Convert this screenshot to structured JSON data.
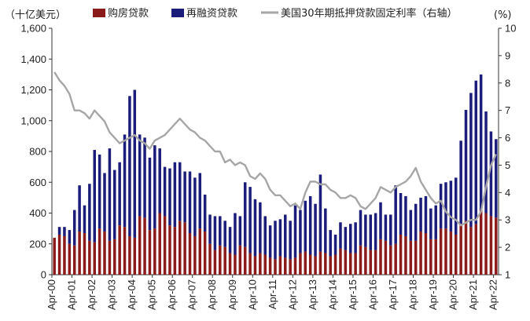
{
  "chart_data": {
    "type": "bar",
    "bar_mode": "stacked",
    "y_left": {
      "unit_label": "（十亿美元）",
      "ylim": [
        0,
        1600
      ],
      "ticks": [
        0,
        200,
        400,
        600,
        800,
        1000,
        1200,
        1400,
        1600
      ],
      "tick_labels": [
        "0",
        "200",
        "400",
        "600",
        "800",
        "1,000",
        "1,200",
        "1,400",
        "1,600"
      ]
    },
    "y_right": {
      "unit_label": "(%)",
      "ylim": [
        1,
        10
      ],
      "ticks": [
        1,
        2,
        3,
        4,
        5,
        6,
        7,
        8,
        9,
        10
      ],
      "tick_labels": [
        "1",
        "2",
        "3",
        "4",
        "5",
        "6",
        "7",
        "8",
        "9",
        "10"
      ]
    },
    "x_tick_labels": [
      "Apr-00",
      "Apr-01",
      "Apr-02",
      "Apr-03",
      "Apr-04",
      "Apr-05",
      "Apr-06",
      "Apr-07",
      "Apr-08",
      "Apr-09",
      "Apr-10",
      "Apr-11",
      "Apr-12",
      "Apr-13",
      "Apr-14",
      "Apr-15",
      "Apr-16",
      "Apr-17",
      "Apr-18",
      "Apr-19",
      "Apr-20",
      "Apr-21",
      "Apr-22"
    ],
    "x_tick_quarter_index": [
      0,
      4,
      8,
      12,
      16,
      20,
      24,
      28,
      32,
      36,
      40,
      44,
      48,
      52,
      56,
      60,
      64,
      68,
      72,
      76,
      80,
      84,
      88
    ],
    "grid": false,
    "legend_position": "top",
    "legend": [
      {
        "name": "购房贷款",
        "kind": "bar",
        "color": "#8b1a1a"
      },
      {
        "name": "再融资贷款",
        "kind": "bar",
        "color": "#1c1c7a"
      },
      {
        "name": "美国30年期抵押贷款固定利率（右轴）",
        "kind": "line",
        "color": "#a6a6a6"
      }
    ],
    "series": [
      {
        "name": "购房贷款",
        "color": "#8b1a1a",
        "axis": "left",
        "values": [
          240,
          260,
          250,
          200,
          190,
          280,
          270,
          220,
          210,
          300,
          280,
          220,
          230,
          320,
          310,
          250,
          240,
          380,
          370,
          290,
          300,
          400,
          380,
          320,
          310,
          350,
          340,
          270,
          250,
          300,
          280,
          200,
          160,
          190,
          180,
          140,
          130,
          190,
          180,
          140,
          120,
          140,
          130,
          110,
          100,
          120,
          110,
          100,
          110,
          140,
          150,
          130,
          120,
          150,
          140,
          120,
          130,
          170,
          160,
          140,
          140,
          190,
          180,
          160,
          160,
          230,
          220,
          190,
          200,
          260,
          250,
          220,
          220,
          280,
          270,
          230,
          230,
          300,
          300,
          280,
          260,
          330,
          350,
          310,
          330,
          420,
          400,
          380,
          370
        ]
      },
      {
        "name": "再融资贷款",
        "color": "#1c1c7a",
        "axis": "left",
        "values": [
          0,
          50,
          60,
          90,
          230,
          300,
          180,
          370,
          600,
          480,
          380,
          600,
          450,
          410,
          600,
          910,
          960,
          530,
          520,
          470,
          540,
          420,
          320,
          370,
          420,
          380,
          330,
          400,
          380,
          360,
          240,
          190,
          220,
          190,
          170,
          170,
          270,
          190,
          420,
          430,
          370,
          330,
          250,
          210,
          250,
          240,
          280,
          250,
          340,
          280,
          330,
          380,
          340,
          500,
          290,
          170,
          130,
          170,
          150,
          190,
          200,
          230,
          210,
          230,
          240,
          240,
          170,
          200,
          380,
          270,
          260,
          200,
          240,
          220,
          240,
          200,
          220,
          290,
          300,
          330,
          370,
          540,
          720,
          870,
          930,
          880,
          660,
          550,
          510
        ]
      },
      {
        "name": "美国30年期抵押贷款固定利率（右轴）",
        "color": "#a6a6a6",
        "axis": "right",
        "type": "line",
        "values": [
          8.4,
          8.1,
          7.9,
          7.6,
          7.0,
          7.0,
          6.9,
          6.7,
          7.0,
          6.8,
          6.6,
          6.2,
          6.0,
          5.8,
          5.9,
          6.0,
          6.1,
          5.9,
          5.8,
          5.6,
          5.9,
          6.0,
          6.1,
          6.3,
          6.5,
          6.7,
          6.5,
          6.3,
          6.2,
          6.0,
          5.9,
          5.7,
          5.5,
          5.5,
          5.1,
          5.2,
          5.0,
          5.1,
          5.0,
          4.6,
          4.5,
          4.7,
          4.5,
          4.1,
          3.9,
          3.9,
          3.7,
          3.5,
          3.6,
          3.4,
          4.0,
          4.4,
          4.4,
          4.3,
          4.3,
          4.1,
          4.0,
          3.8,
          3.8,
          3.9,
          3.8,
          3.5,
          3.4,
          3.6,
          3.8,
          4.2,
          4.1,
          4.0,
          4.2,
          4.3,
          4.4,
          4.6,
          4.9,
          4.4,
          4.1,
          3.8,
          3.6,
          3.7,
          3.3,
          3.1,
          3.0,
          2.8,
          2.9,
          3.0,
          3.0,
          3.3,
          4.2,
          5.0,
          5.4
        ]
      }
    ]
  }
}
